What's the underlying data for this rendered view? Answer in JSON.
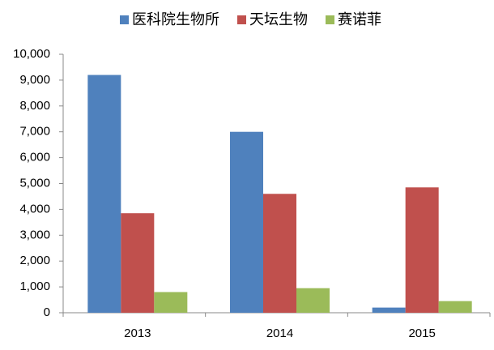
{
  "chart_data": {
    "type": "bar",
    "categories": [
      "2013",
      "2014",
      "2015"
    ],
    "series": [
      {
        "name": "医科院生物所",
        "color": "#4f81bd",
        "values": [
          9200,
          7000,
          200
        ]
      },
      {
        "name": "天坛生物",
        "color": "#c0504d",
        "values": [
          3850,
          4600,
          4850
        ]
      },
      {
        "name": "赛诺菲",
        "color": "#9bbb59",
        "values": [
          800,
          950,
          450
        ]
      }
    ],
    "ylim": [
      0,
      10000
    ],
    "yticks": [
      0,
      {
        "value": 1000,
        "label": "1,000"
      },
      {
        "value": 2000,
        "label": "2,000"
      },
      {
        "value": 3000,
        "label": "3,000"
      },
      {
        "value": 4000,
        "label": "4,000"
      },
      {
        "value": 5000,
        "label": "5,000"
      },
      {
        "value": 6000,
        "label": "6,000"
      },
      {
        "value": 7000,
        "label": "7,000"
      },
      {
        "value": 8000,
        "label": "8,000"
      },
      {
        "value": 9000,
        "label": "9,000"
      },
      {
        "value": 10000,
        "label": "10,000"
      }
    ],
    "legend": "top"
  }
}
